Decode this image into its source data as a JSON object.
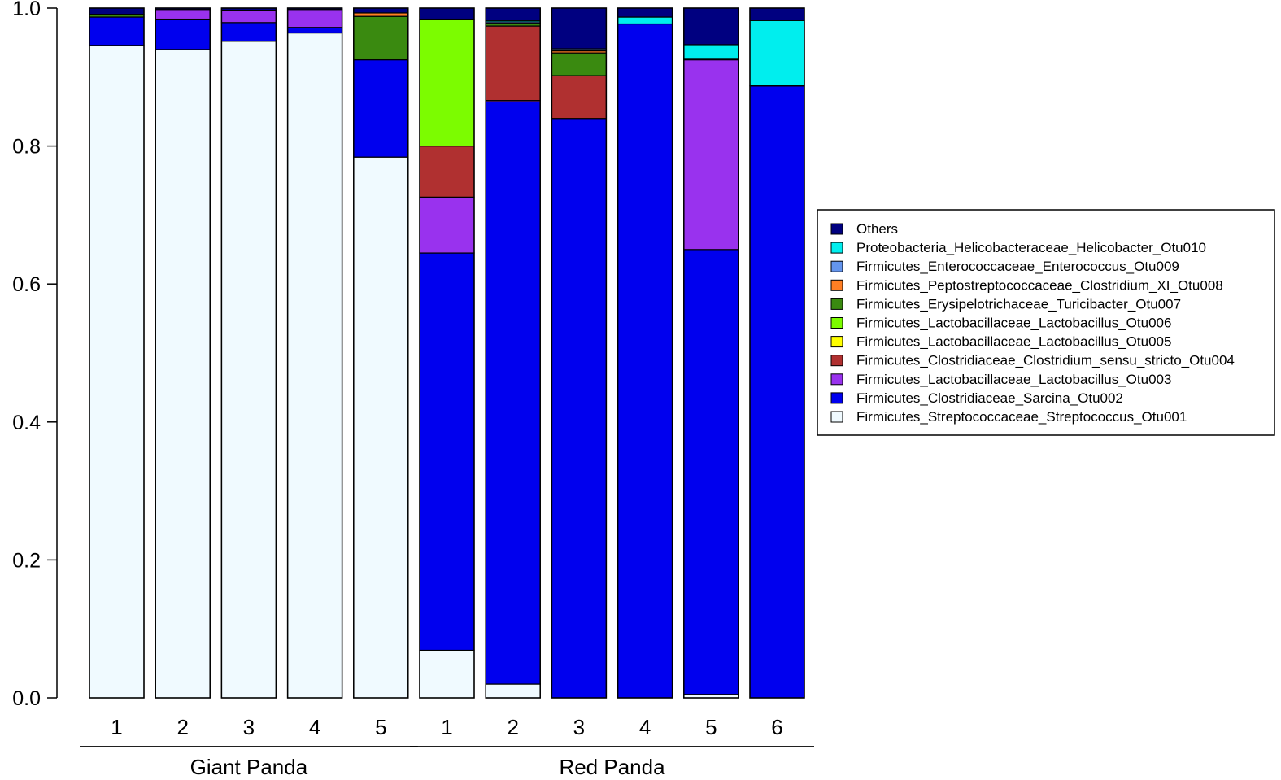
{
  "chart_data": {
    "type": "bar",
    "stacked": true,
    "title": "",
    "xlabel": "",
    "ylabel": "",
    "ylim": [
      0,
      1
    ],
    "y_ticks": [
      "0.0",
      "0.2",
      "0.4",
      "0.6",
      "0.8",
      "1.0"
    ],
    "categories": [
      "1",
      "2",
      "3",
      "4",
      "5",
      "1",
      "2",
      "3",
      "4",
      "5",
      "6"
    ],
    "groups": [
      {
        "label": "Giant Panda",
        "count": 5
      },
      {
        "label": "Red Panda",
        "count": 6
      }
    ],
    "series": [
      {
        "name": "Firmicutes_Streptococcaceae_Streptococcus_Otu001",
        "color": "#f0faff",
        "values": [
          0.946,
          0.94,
          0.952,
          0.964,
          0.784,
          0.069,
          0.02,
          0.0,
          0.0,
          0.005,
          0.0
        ]
      },
      {
        "name": "Firmicutes_Clostridiaceae_Sarcina_Otu002",
        "color": "#0000ee",
        "values": [
          0.041,
          0.044,
          0.027,
          0.008,
          0.141,
          0.576,
          0.844,
          0.84,
          0.977,
          0.645,
          0.887
        ]
      },
      {
        "name": "Firmicutes_Lactobacillaceae_Lactobacillus_Otu003",
        "color": "#9932ee",
        "values": [
          0.0,
          0.014,
          0.018,
          0.026,
          0.0,
          0.081,
          0.002,
          0.0,
          0.0,
          0.275,
          0.001
        ]
      },
      {
        "name": "Firmicutes_Clostridiaceae_Clostridium_sensu_stricto_Otu004",
        "color": "#b03030",
        "values": [
          0.0,
          0.0,
          0.0,
          0.0,
          0.0,
          0.074,
          0.108,
          0.062,
          0.0,
          0.002,
          0.0
        ]
      },
      {
        "name": "Firmicutes_Lactobacillaceae_Lactobacillus_Otu005",
        "color": "#ffff00",
        "values": [
          0.0,
          0.0,
          0.0,
          0.0,
          0.0,
          0.0,
          0.0,
          0.0,
          0.0,
          0.0,
          0.0
        ]
      },
      {
        "name": "Firmicutes_Lactobacillaceae_Lactobacillus_Otu006",
        "color": "#7cfc00",
        "values": [
          0.0,
          0.0,
          0.0,
          0.0,
          0.0,
          0.184,
          0.0,
          0.0,
          0.0,
          0.0,
          0.0
        ]
      },
      {
        "name": "Firmicutes_Erysipelotrichaceae_Turicibacter_Otu007",
        "color": "#3a8a10",
        "values": [
          0.004,
          0.0,
          0.0,
          0.0,
          0.063,
          0.0,
          0.004,
          0.033,
          0.0,
          0.0,
          0.0
        ]
      },
      {
        "name": "Firmicutes_Peptostreptococcaceae_Clostridium_XI_Otu008",
        "color": "#ff7f24",
        "values": [
          0.0,
          0.0,
          0.0,
          0.0,
          0.005,
          0.0,
          0.0,
          0.003,
          0.0,
          0.0,
          0.0
        ]
      },
      {
        "name": "Firmicutes_Enterococcaceae_Enterococcus_Otu009",
        "color": "#6495ed",
        "values": [
          0.0,
          0.0,
          0.0,
          0.0,
          0.0,
          0.0,
          0.002,
          0.003,
          0.0,
          0.0,
          0.0
        ]
      },
      {
        "name": "Proteobacteria_Helicobacteraceae_Helicobacter_Otu010",
        "color": "#00eeee",
        "values": [
          0.0,
          0.0,
          0.0,
          0.0,
          0.0,
          0.0,
          0.002,
          0.0,
          0.01,
          0.02,
          0.094
        ]
      },
      {
        "name": "Others",
        "color": "#000080",
        "values": [
          0.009,
          0.002,
          0.003,
          0.002,
          0.007,
          0.016,
          0.018,
          0.059,
          0.013,
          0.053,
          0.018
        ]
      }
    ],
    "legend": {
      "placement": "right",
      "order_top_to_bottom": [
        "Others",
        "Proteobacteria_Helicobacteraceae_Helicobacter_Otu010",
        "Firmicutes_Enterococcaceae_Enterococcus_Otu009",
        "Firmicutes_Peptostreptococcaceae_Clostridium_XI_Otu008",
        "Firmicutes_Erysipelotrichaceae_Turicibacter_Otu007",
        "Firmicutes_Lactobacillaceae_Lactobacillus_Otu006",
        "Firmicutes_Lactobacillaceae_Lactobacillus_Otu005",
        "Firmicutes_Clostridiaceae_Clostridium_sensu_stricto_Otu004",
        "Firmicutes_Lactobacillaceae_Lactobacillus_Otu003",
        "Firmicutes_Clostridiaceae_Sarcina_Otu002",
        "Firmicutes_Streptococcaceae_Streptococcus_Otu001"
      ]
    }
  }
}
